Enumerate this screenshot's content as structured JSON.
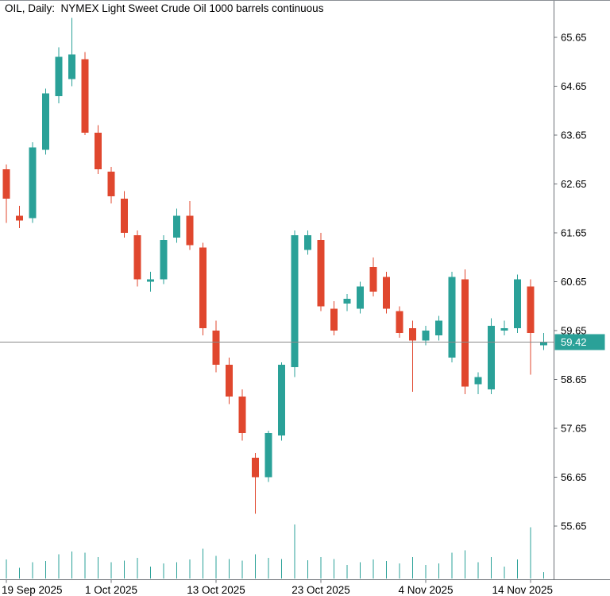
{
  "window": {
    "title": "OIL, Daily:  NYMEX Light Sweet Crude Oil 1000 barrels continuous"
  },
  "colors": {
    "background": "#ffffff",
    "up": "#2aa198",
    "down": "#e0472e",
    "volume": "#2aa198",
    "axis_text": "#000000",
    "axis_line": "#6b6f75",
    "price_line": "#8a8a8a",
    "price_badge_bg": "#2aa198",
    "price_badge_text": "#ffffff"
  },
  "current_price": {
    "value": "59.42"
  },
  "y_axis": {
    "max": 65.65,
    "step": 1.0,
    "labels": [
      "65.65",
      "64.65",
      "63.65",
      "62.65",
      "61.65",
      "60.65",
      "59.65",
      "58.65",
      "57.65",
      "56.65",
      "55.65"
    ]
  },
  "x_axis": {
    "labels": [
      {
        "text": "19 Sep 2025",
        "index": 0
      },
      {
        "text": "1 Oct 2025",
        "index": 8
      },
      {
        "text": "13 Oct 2025",
        "index": 16
      },
      {
        "text": "23 Oct 2025",
        "index": 24
      },
      {
        "text": "4 Nov 2025",
        "index": 32
      },
      {
        "text": "14 Nov 2025",
        "index": 40
      }
    ]
  },
  "chart_data": {
    "type": "candlestick",
    "title": "OIL, Daily: NYMEX Light Sweet Crude Oil 1000 barrels continuous",
    "symbol": "OIL",
    "timeframe": "Daily",
    "ylim": [
      55.65,
      65.65
    ],
    "grid": false,
    "legend": false,
    "last_price": 59.42,
    "dates": [
      "2025-09-19",
      "2025-09-22",
      "2025-09-23",
      "2025-09-24",
      "2025-09-25",
      "2025-09-26",
      "2025-09-29",
      "2025-09-30",
      "2025-10-01",
      "2025-10-02",
      "2025-10-03",
      "2025-10-06",
      "2025-10-07",
      "2025-10-08",
      "2025-10-09",
      "2025-10-10",
      "2025-10-13",
      "2025-10-14",
      "2025-10-15",
      "2025-10-16",
      "2025-10-17",
      "2025-10-20",
      "2025-10-21",
      "2025-10-22",
      "2025-10-23",
      "2025-10-24",
      "2025-10-27",
      "2025-10-28",
      "2025-10-29",
      "2025-10-30",
      "2025-10-31",
      "2025-11-03",
      "2025-11-04",
      "2025-11-05",
      "2025-11-06",
      "2025-11-07",
      "2025-11-10",
      "2025-11-11",
      "2025-11-12",
      "2025-11-13",
      "2025-11-14",
      "2025-11-17"
    ],
    "candles": [
      [
        62.95,
        63.05,
        61.85,
        62.35
      ],
      [
        62.0,
        62.2,
        61.75,
        61.9
      ],
      [
        61.95,
        63.5,
        61.85,
        63.4
      ],
      [
        63.35,
        64.6,
        63.25,
        64.5
      ],
      [
        64.45,
        65.45,
        64.3,
        65.25
      ],
      [
        64.8,
        66.05,
        64.65,
        65.3
      ],
      [
        65.2,
        65.35,
        63.65,
        63.7
      ],
      [
        63.7,
        63.85,
        62.85,
        62.95
      ],
      [
        62.9,
        63.0,
        62.25,
        62.4
      ],
      [
        62.35,
        62.5,
        61.55,
        61.65
      ],
      [
        61.6,
        61.7,
        60.55,
        60.7
      ],
      [
        60.65,
        60.85,
        60.45,
        60.7
      ],
      [
        60.7,
        61.6,
        60.6,
        61.5
      ],
      [
        61.55,
        62.15,
        61.45,
        62.0
      ],
      [
        62.0,
        62.3,
        61.3,
        61.4
      ],
      [
        61.35,
        61.45,
        59.55,
        59.7
      ],
      [
        59.65,
        59.85,
        58.8,
        58.95
      ],
      [
        58.95,
        59.1,
        58.15,
        58.3
      ],
      [
        58.3,
        58.45,
        57.4,
        57.55
      ],
      [
        57.05,
        57.15,
        55.9,
        56.65
      ],
      [
        56.65,
        57.6,
        56.55,
        57.55
      ],
      [
        57.5,
        59.0,
        57.4,
        58.95
      ],
      [
        58.9,
        61.7,
        58.7,
        61.6
      ],
      [
        61.3,
        61.7,
        61.2,
        61.6
      ],
      [
        61.5,
        61.65,
        60.05,
        60.15
      ],
      [
        60.1,
        60.25,
        59.55,
        59.65
      ],
      [
        60.2,
        60.4,
        60.05,
        60.3
      ],
      [
        60.1,
        60.65,
        60.0,
        60.55
      ],
      [
        60.95,
        61.15,
        60.35,
        60.45
      ],
      [
        60.75,
        60.85,
        60.0,
        60.1
      ],
      [
        60.05,
        60.15,
        59.5,
        59.6
      ],
      [
        59.7,
        59.85,
        58.4,
        59.45
      ],
      [
        59.45,
        59.75,
        59.35,
        59.65
      ],
      [
        59.55,
        59.95,
        59.45,
        59.85
      ],
      [
        59.1,
        60.85,
        59.0,
        60.75
      ],
      [
        60.7,
        60.9,
        58.35,
        58.5
      ],
      [
        58.55,
        58.8,
        58.35,
        58.7
      ],
      [
        58.45,
        59.9,
        58.35,
        59.75
      ],
      [
        59.65,
        59.85,
        59.55,
        59.7
      ],
      [
        59.7,
        60.8,
        59.6,
        60.7
      ],
      [
        60.55,
        60.7,
        58.75,
        59.6
      ],
      [
        59.35,
        59.6,
        59.25,
        59.42
      ]
    ],
    "volume_rel": [
      35,
      20,
      30,
      32,
      45,
      50,
      48,
      40,
      30,
      33,
      38,
      22,
      28,
      30,
      35,
      55,
      42,
      36,
      33,
      45,
      38,
      36,
      100,
      34,
      40,
      36,
      25,
      30,
      35,
      32,
      28,
      40,
      25,
      28,
      48,
      52,
      30,
      40,
      22,
      35,
      95,
      12
    ]
  }
}
